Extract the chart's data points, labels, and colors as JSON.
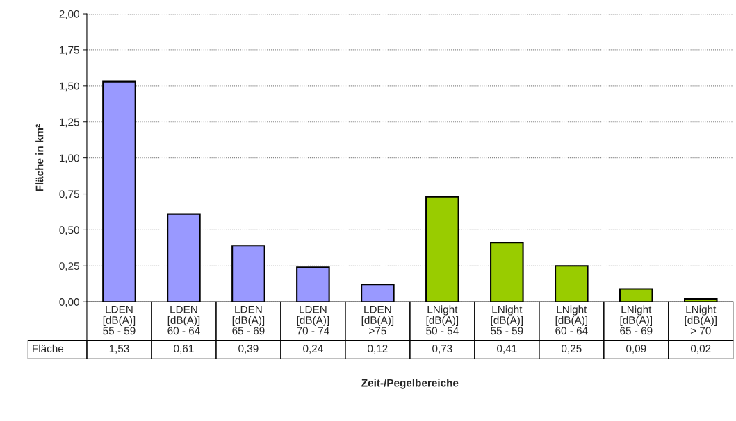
{
  "chart_data": {
    "type": "bar",
    "xlabel": "Zeit-/Pegelbereiche",
    "ylabel": "Fläche in km²",
    "categories": [
      "LDEN\n[dB(A)]\n55 - 59",
      "LDEN\n[dB(A)]\n60 - 64",
      "LDEN\n[dB(A)]\n65 - 69",
      "LDEN\n[dB(A)]\n70 - 74",
      "LDEN\n[dB(A)]\n>75",
      "LNight\n[dB(A)]\n50 - 54",
      "LNight\n[dB(A)]\n55 - 59",
      "LNight\n[dB(A)]\n60 - 64",
      "LNight\n[dB(A)]\n65 - 69",
      "LNight\n[dB(A)]\n> 70"
    ],
    "series": [
      {
        "name": "Fläche",
        "values": [
          1.53,
          0.61,
          0.39,
          0.24,
          0.12,
          0.73,
          0.41,
          0.25,
          0.09,
          0.02
        ],
        "value_labels": [
          "1,53",
          "0,61",
          "0,39",
          "0,24",
          "0,12",
          "0,73",
          "0,41",
          "0,25",
          "0,09",
          "0,02"
        ],
        "colors": [
          "#9999ff",
          "#9999ff",
          "#9999ff",
          "#9999ff",
          "#9999ff",
          "#99cc00",
          "#99cc00",
          "#99cc00",
          "#99cc00",
          "#99cc00"
        ]
      }
    ],
    "ylim": [
      0,
      2
    ],
    "yticks": [
      {
        "value": 0,
        "label": "0,00"
      },
      {
        "value": 0.25,
        "label": "0,25"
      },
      {
        "value": 0.5,
        "label": "0,50"
      },
      {
        "value": 0.75,
        "label": "0,75"
      },
      {
        "value": 1,
        "label": "1,00"
      },
      {
        "value": 1.25,
        "label": "1,25"
      },
      {
        "value": 1.5,
        "label": "1,50"
      },
      {
        "value": 1.75,
        "label": "1,75"
      },
      {
        "value": 2,
        "label": "2,00"
      }
    ],
    "grid": "y",
    "legend": false
  }
}
